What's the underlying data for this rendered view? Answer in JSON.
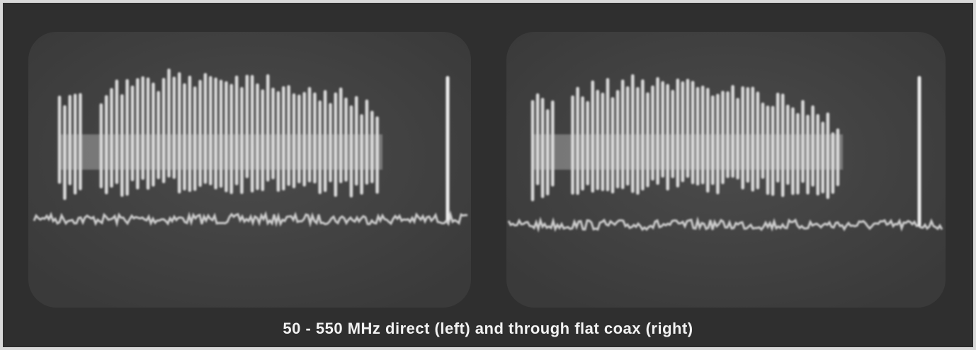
{
  "caption": "50 - 550 MHz direct (left) and through flat coax (right)"
}
